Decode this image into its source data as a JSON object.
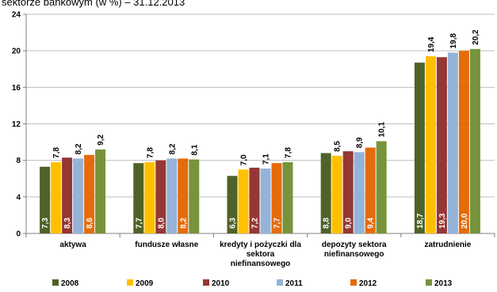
{
  "chart_data": {
    "type": "bar",
    "title": "sektorze bankowym (w %) – 31.12.2013",
    "categories": [
      [
        "aktywa"
      ],
      [
        "fundusze własne"
      ],
      [
        "kredyty i pożyczki dla",
        "sektora",
        "niefinansowego"
      ],
      [
        "depozyty sektora",
        "niefinansowego"
      ],
      [
        "zatrudnienie"
      ]
    ],
    "series": [
      {
        "name": "2008",
        "color": "#4f6228",
        "values": [
          7.3,
          7.7,
          6.3,
          8.8,
          18.7
        ],
        "labels": [
          "7,3",
          "7,7",
          "6,3",
          "8,8",
          "18,7"
        ]
      },
      {
        "name": "2009",
        "color": "#ffc000",
        "values": [
          7.8,
          7.8,
          7.0,
          8.5,
          19.4
        ],
        "labels": [
          "7,8",
          "7,8",
          "7,0",
          "8,5",
          "19,4"
        ]
      },
      {
        "name": "2010",
        "color": "#953735",
        "values": [
          8.3,
          8.0,
          7.2,
          9.0,
          19.3
        ],
        "labels": [
          "8,3",
          "8,0",
          "7,2",
          "9,0",
          "19,3"
        ]
      },
      {
        "name": "2011",
        "color": "#95b3d7",
        "values": [
          8.2,
          8.2,
          7.1,
          8.9,
          19.8
        ],
        "labels": [
          "8,2",
          "8,2",
          "7,1",
          "8,9",
          "19,8"
        ]
      },
      {
        "name": "2012",
        "color": "#e46c0a",
        "values": [
          8.6,
          8.2,
          7.7,
          9.4,
          20.0
        ],
        "labels": [
          "8,6",
          "8,2",
          "7,7",
          "9,4",
          "20,0"
        ]
      },
      {
        "name": "2013",
        "color": "#77933c",
        "values": [
          9.2,
          8.1,
          7.8,
          10.1,
          20.2
        ],
        "labels": [
          "9,2",
          "8,1",
          "7,8",
          "10,1",
          "20,2"
        ]
      }
    ],
    "label_position": [
      "inside",
      "outside",
      "inside",
      "outside",
      "inside",
      "outside"
    ],
    "ylim": [
      0,
      24
    ],
    "yticks": [
      0,
      4,
      8,
      12,
      16,
      20,
      24
    ],
    "xlabel": "",
    "ylabel": "",
    "grid": true,
    "legend": "bottom"
  }
}
